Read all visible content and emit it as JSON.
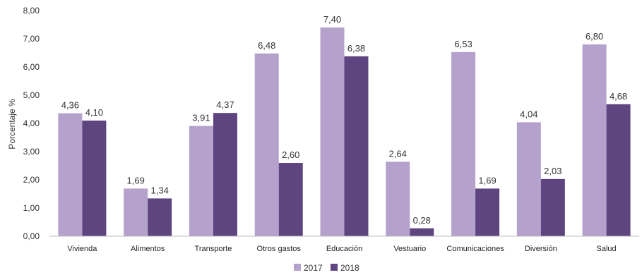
{
  "chart_data": {
    "type": "bar",
    "ylabel": "Porcentaje %",
    "xlabel": "",
    "ylim": [
      0,
      8
    ],
    "ytick_step": 1,
    "ytick_labels": [
      "0,00",
      "1,00",
      "2,00",
      "3,00",
      "4,00",
      "5,00",
      "6,00",
      "7,00",
      "8,00"
    ],
    "grid": false,
    "legend_position": "bottom-center",
    "categories": [
      "Vivienda",
      "Alimentos",
      "Transporte",
      "Otros gastos",
      "Educación",
      "Vestuario",
      "Comunicaciones",
      "Diversión",
      "Salud"
    ],
    "series": [
      {
        "name": "2017",
        "color": "#b4a2cc",
        "values": [
          4.36,
          1.69,
          3.91,
          6.48,
          7.4,
          2.64,
          6.53,
          4.04,
          6.8
        ],
        "labels": [
          "4,36",
          "1,69",
          "3,91",
          "6,48",
          "7,40",
          "2,64",
          "6,53",
          "4,04",
          "6,80"
        ]
      },
      {
        "name": "2018",
        "color": "#5f4580",
        "values": [
          4.1,
          1.34,
          4.37,
          2.6,
          6.38,
          0.28,
          1.69,
          2.03,
          4.68
        ],
        "labels": [
          "4,10",
          "1,34",
          "4,37",
          "2,60",
          "6,38",
          "0,28",
          "1,69",
          "2,03",
          "4,68"
        ]
      }
    ]
  }
}
